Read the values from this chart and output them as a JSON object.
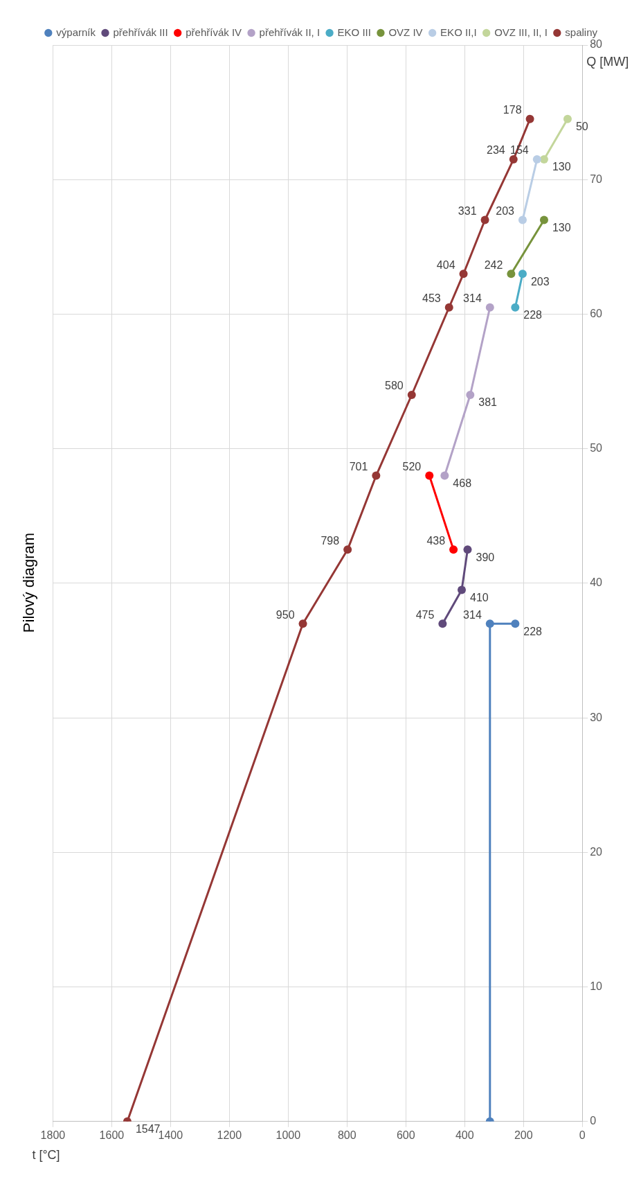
{
  "chart_data": {
    "type": "line",
    "title": "Pilový diagram",
    "xlabel": "t [°C]",
    "ylabel": "Q [MW]",
    "xlim": [
      1800,
      0
    ],
    "xticks": [
      0,
      200,
      400,
      600,
      800,
      1000,
      1200,
      1400,
      1600,
      1800
    ],
    "ylim": [
      0,
      80
    ],
    "yticks": [
      0,
      10,
      20,
      30,
      40,
      50,
      60,
      70,
      80
    ],
    "grid": true,
    "legend": "top right",
    "marker": "circle",
    "line_style": "solid",
    "series": [
      {
        "name": "výparník",
        "color": "#4f81bd",
        "x": [
          314,
          314,
          228
        ],
        "values": [
          0,
          37,
          37
        ]
      },
      {
        "name": "přehřívák III",
        "color": "#604a7b",
        "x": [
          475,
          410,
          390
        ],
        "values": [
          37,
          39.5,
          42.5
        ]
      },
      {
        "name": "přehřívák IV",
        "color": "#ff0000",
        "x": [
          438,
          520
        ],
        "values": [
          42.5,
          48
        ]
      },
      {
        "name": "přehřívák II, I",
        "color": "#b3a2c7",
        "x": [
          468,
          381,
          314
        ],
        "values": [
          48,
          54,
          60.5
        ]
      },
      {
        "name": "EKO III",
        "color": "#4bacc6",
        "x": [
          228,
          203
        ],
        "values": [
          60.5,
          63
        ]
      },
      {
        "name": "OVZ IV",
        "color": "#77933c",
        "x": [
          242,
          130
        ],
        "values": [
          63,
          67
        ]
      },
      {
        "name": "EKO II,I",
        "color": "#b9cde5",
        "x": [
          203,
          154
        ],
        "values": [
          67,
          71.5
        ]
      },
      {
        "name": "OVZ III, II, I",
        "color": "#c3d69b",
        "x": [
          130,
          50
        ],
        "values": [
          71.5,
          74.5
        ]
      },
      {
        "name": "spaliny",
        "color": "#953735",
        "x": [
          1547,
          950,
          798,
          701,
          580,
          453,
          404,
          331,
          234,
          178
        ],
        "values": [
          0,
          37,
          42.5,
          48,
          54,
          60.5,
          63,
          67,
          71.5,
          74.5
        ]
      }
    ],
    "annotations": [
      {
        "text": "314",
        "x": 314,
        "y": 37
      },
      {
        "text": "228",
        "x": 228,
        "y": 37
      },
      {
        "text": "475",
        "x": 475,
        "y": 37
      },
      {
        "text": "410",
        "x": 410,
        "y": 39.5
      },
      {
        "text": "390",
        "x": 390,
        "y": 42.5
      },
      {
        "text": "438",
        "x": 438,
        "y": 42.5
      },
      {
        "text": "520",
        "x": 520,
        "y": 48
      },
      {
        "text": "468",
        "x": 468,
        "y": 48
      },
      {
        "text": "381",
        "x": 381,
        "y": 54
      },
      {
        "text": "314",
        "x": 314,
        "y": 60.5
      },
      {
        "text": "228",
        "x": 228,
        "y": 60.5
      },
      {
        "text": "203",
        "x": 203,
        "y": 63
      },
      {
        "text": "242",
        "x": 242,
        "y": 63
      },
      {
        "text": "130",
        "x": 130,
        "y": 67
      },
      {
        "text": "203",
        "x": 203,
        "y": 67
      },
      {
        "text": "154",
        "x": 154,
        "y": 71.5
      },
      {
        "text": "130",
        "x": 130,
        "y": 71.5
      },
      {
        "text": "50",
        "x": 50,
        "y": 74.5
      },
      {
        "text": "1547",
        "x": 1547,
        "y": 0
      },
      {
        "text": "950",
        "x": 950,
        "y": 37
      },
      {
        "text": "798",
        "x": 798,
        "y": 42.5
      },
      {
        "text": "701",
        "x": 701,
        "y": 48
      },
      {
        "text": "580",
        "x": 580,
        "y": 54
      },
      {
        "text": "453",
        "x": 453,
        "y": 60.5
      },
      {
        "text": "404",
        "x": 404,
        "y": 63
      },
      {
        "text": "331",
        "x": 331,
        "y": 67
      },
      {
        "text": "234",
        "x": 234,
        "y": 71.5
      },
      {
        "text": "178",
        "x": 178,
        "y": 74.5
      }
    ]
  }
}
